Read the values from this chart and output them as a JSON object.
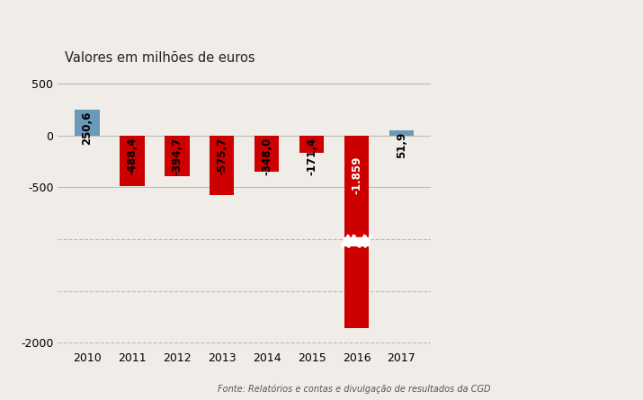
{
  "categories": [
    "2010",
    "2011",
    "2012",
    "2013",
    "2014",
    "2015",
    "2016",
    "2017"
  ],
  "values": [
    250.6,
    -488.4,
    -394.7,
    -575.7,
    -348.0,
    -171.4,
    -1859,
    51.9
  ],
  "bar_colors": [
    "#6b9ab8",
    "#cc0000",
    "#cc0000",
    "#cc0000",
    "#cc0000",
    "#cc0000",
    "#cc0000",
    "#6b9ab8"
  ],
  "labels": [
    "250,6",
    "-488,4",
    "-394,7",
    "-575,7",
    "-348,0",
    "-171,4",
    "-1.859",
    "51,9"
  ],
  "label_colors": [
    "#000000",
    "#000000",
    "#000000",
    "#000000",
    "#000000",
    "#000000",
    "#ffffff",
    "#000000"
  ],
  "title": "Valores em milhões de euros",
  "source": "Fonte: Relatórios e contas e divulgação de resultados da CGD",
  "ylim": [
    -2050,
    650
  ],
  "yticks": [
    -2000,
    -500,
    0,
    500
  ],
  "background_color": "#f0ede8",
  "grid_color": "#bbbbbb",
  "title_fontsize": 10.5,
  "label_fontsize": 8.5
}
